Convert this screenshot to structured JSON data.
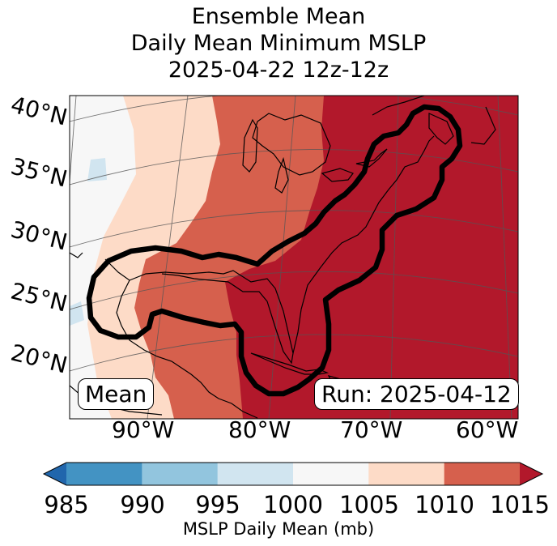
{
  "title": {
    "line1": "Ensemble Mean",
    "line2": "Daily Mean Minimum MSLP",
    "line3": "2025-04-22 12z-12z"
  },
  "map": {
    "lat_labels": [
      "40°N",
      "35°N",
      "30°N",
      "25°N",
      "20°N"
    ],
    "lon_labels": [
      "90°W",
      "80°W",
      "70°W",
      "60°W"
    ],
    "mean_label": "Mean",
    "run_label": "Run: 2025-04-12",
    "contour_color": "#000000"
  },
  "colorbar": {
    "ticks": [
      "985",
      "990",
      "995",
      "1000",
      "1005",
      "1010",
      "1015"
    ],
    "label": "MSLP Daily Mean (mb)",
    "colors": [
      "#2166ac",
      "#4393c3",
      "#92c5de",
      "#d1e5f0",
      "#f7f7f7",
      "#fddbc7",
      "#d6604d",
      "#b2182b"
    ]
  }
}
